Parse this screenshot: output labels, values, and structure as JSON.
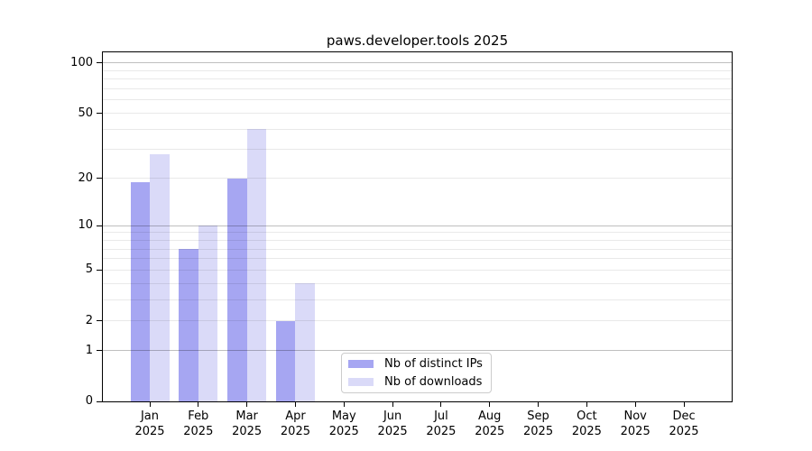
{
  "title": "paws.developer.tools 2025",
  "chart_data": {
    "type": "bar",
    "title": "paws.developer.tools 2025",
    "categories": [
      "Jan",
      "Feb",
      "Mar",
      "Apr",
      "May",
      "Jun",
      "Jul",
      "Aug",
      "Sep",
      "Oct",
      "Nov",
      "Dec"
    ],
    "year_label": "2025",
    "series": [
      {
        "name": "Nb of distinct IPs",
        "color": "#a6a6f2",
        "values": [
          19,
          7,
          20,
          2,
          0,
          0,
          0,
          0,
          0,
          0,
          0,
          0
        ]
      },
      {
        "name": "Nb of downloads",
        "color": "#dadaf8",
        "values": [
          28,
          10,
          40,
          4,
          0,
          0,
          0,
          0,
          0,
          0,
          0,
          0
        ]
      }
    ],
    "yscale": "log1p",
    "ylim": [
      0,
      116
    ],
    "ytick_labels": [
      "0",
      "1",
      "2",
      "5",
      "10",
      "20",
      "50",
      "100"
    ],
    "ytick_values": [
      0,
      1,
      2,
      5,
      10,
      20,
      50,
      100
    ],
    "major_gridlines": [
      1,
      10,
      100
    ],
    "minor_gridlines": [
      2,
      3,
      4,
      5,
      6,
      7,
      8,
      9,
      20,
      30,
      40,
      50,
      60,
      70,
      80,
      90
    ],
    "grid": true,
    "legend_position": "lower center",
    "colors": {
      "major_grid": "rgba(0,0,0,0.25)",
      "minor_grid": "rgba(0,0,0,0.085)",
      "axis": "#000000",
      "background": "#ffffff"
    }
  }
}
